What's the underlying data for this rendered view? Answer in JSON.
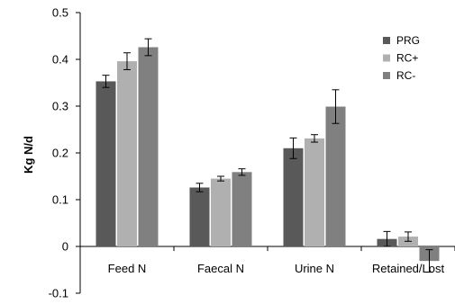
{
  "chart_data": {
    "type": "bar",
    "title": "",
    "xlabel": "",
    "ylabel": "Kg N/d",
    "categories": [
      "Feed N",
      "Faecal N",
      "Urine N",
      "Retained/Lost"
    ],
    "ylim": [
      -0.1,
      0.5
    ],
    "yticks": [
      "-0.1",
      "0",
      "0.1",
      "0.2",
      "0.3",
      "0.4",
      "0.5"
    ],
    "grid": false,
    "legend_position": "top-right",
    "series": [
      {
        "name": "PRG",
        "color": "#595959",
        "values": [
          0.353,
          0.126,
          0.21,
          0.016
        ],
        "errors": [
          0.013,
          0.009,
          0.022,
          0.016
        ]
      },
      {
        "name": "RC+",
        "color": "#b0b0b0",
        "values": [
          0.396,
          0.145,
          0.231,
          0.021
        ],
        "errors": [
          0.018,
          0.005,
          0.008,
          0.01
        ]
      },
      {
        "name": "RC-",
        "color": "#808080",
        "values": [
          0.426,
          0.159,
          0.299,
          -0.031
        ],
        "errors": [
          0.018,
          0.007,
          0.036,
          0.024
        ]
      }
    ]
  }
}
